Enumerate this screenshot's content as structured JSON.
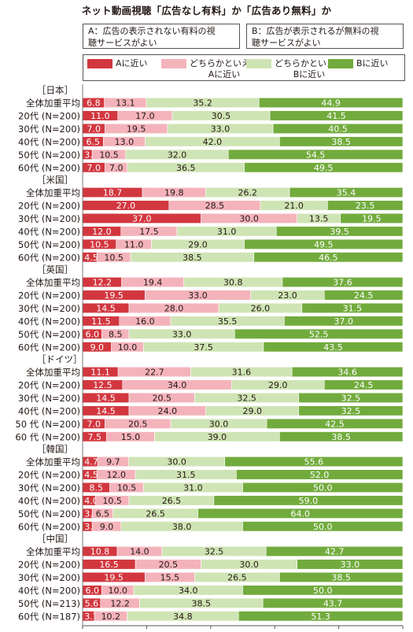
{
  "title": "ネット動画視聴「広告なし有料」か「広告あり無料」か",
  "option_a": "A：広告の表示されない有料の視\n聴サービスがよい",
  "option_b": "B：広告が表示されるが無料の視\n聴サービスがよい",
  "colors": {
    "a_near": "#d2373f",
    "lean_a": "#f4b3bb",
    "lean_b": "#cfe4b4",
    "b_near": "#72ab3d"
  },
  "chart_data": {
    "type": "bar",
    "stacked": true,
    "orientation": "horizontal",
    "title": "ネット動画視聴「広告なし有料」か「広告あり無料」か",
    "xlabel": "",
    "x_unit": "(%)",
    "xlim": [
      0,
      100
    ],
    "x_ticks": [
      "0",
      "20",
      "40",
      "60",
      "80",
      "100"
    ],
    "grid": false,
    "legend_position": "top",
    "series": [
      {
        "name": "Aに近い"
      },
      {
        "name": "どちらかといえば\nAに近い"
      },
      {
        "name": "どちらかといえば\nBに近い"
      },
      {
        "name": "Bに近い"
      }
    ],
    "groups": [
      {
        "name": "［日本］",
        "rows": [
          {
            "label": "全体加重平均",
            "values": [
              6.8,
              13.1,
              35.2,
              44.9
            ]
          },
          {
            "label": "20代 (N=200)",
            "values": [
              11.0,
              17.0,
              30.5,
              41.5
            ]
          },
          {
            "label": "30代 (N=200)",
            "values": [
              7.0,
              19.5,
              33.0,
              40.5
            ]
          },
          {
            "label": "40代 (N=200)",
            "values": [
              6.5,
              13.0,
              42.0,
              38.5
            ]
          },
          {
            "label": "50代 (N=200)",
            "values": [
              3.0,
              10.5,
              32.0,
              54.5
            ]
          },
          {
            "label": "60代 (N=200)",
            "values": [
              7.0,
              7.0,
              36.5,
              49.5
            ]
          }
        ]
      },
      {
        "name": "［米国］",
        "rows": [
          {
            "label": "全体加重平均",
            "values": [
              18.7,
              19.8,
              26.2,
              35.4
            ]
          },
          {
            "label": "20代 (N=200)",
            "values": [
              27.0,
              28.5,
              21.0,
              23.5
            ]
          },
          {
            "label": "30代 (N=200)",
            "values": [
              37.0,
              30.0,
              13.5,
              19.5
            ]
          },
          {
            "label": "40代 (N=200)",
            "values": [
              12.0,
              17.5,
              31.0,
              39.5
            ]
          },
          {
            "label": "50代 (N=200)",
            "values": [
              10.5,
              11.0,
              29.0,
              49.5
            ]
          },
          {
            "label": "60代 (N=200)",
            "values": [
              4.5,
              10.5,
              38.5,
              46.5
            ]
          }
        ]
      },
      {
        "name": "［英国］",
        "rows": [
          {
            "label": "全体加重平均",
            "values": [
              12.2,
              19.4,
              30.8,
              37.6
            ]
          },
          {
            "label": "20代 (N=200)",
            "values": [
              19.5,
              33.0,
              23.0,
              24.5
            ]
          },
          {
            "label": "30代 (N=200)",
            "values": [
              14.5,
              28.0,
              26.0,
              31.5
            ]
          },
          {
            "label": "40代 (N=200)",
            "values": [
              11.5,
              16.0,
              35.5,
              37.0
            ]
          },
          {
            "label": "50代 (N=200)",
            "values": [
              6.0,
              8.5,
              33.0,
              52.5
            ]
          },
          {
            "label": "60代 (N=200)",
            "values": [
              9.0,
              10.0,
              37.5,
              43.5
            ]
          }
        ]
      },
      {
        "name": "［ドイツ］",
        "rows": [
          {
            "label": "全体加重平均",
            "values": [
              11.1,
              22.7,
              31.6,
              34.6
            ]
          },
          {
            "label": "20代 (N=200)",
            "values": [
              12.5,
              34.0,
              29.0,
              24.5
            ]
          },
          {
            "label": "30代 (N=200)",
            "values": [
              14.5,
              20.5,
              32.5,
              32.5
            ]
          },
          {
            "label": "40代 (N=200)",
            "values": [
              14.5,
              24.0,
              29.0,
              32.5
            ]
          },
          {
            "label": "50 代 (N=200)",
            "values": [
              7.0,
              20.5,
              30.0,
              42.5
            ]
          },
          {
            "label": "60 代 (N=200)",
            "values": [
              7.5,
              15.0,
              39.0,
              38.5
            ]
          }
        ]
      },
      {
        "name": "［韓国］",
        "rows": [
          {
            "label": "全体加重平均",
            "values": [
              4.7,
              9.7,
              30.0,
              55.6
            ]
          },
          {
            "label": "20代 (N=200)",
            "values": [
              4.5,
              12.0,
              31.5,
              52.0
            ]
          },
          {
            "label": "30代 (N=200)",
            "values": [
              8.5,
              10.5,
              31.0,
              50.0
            ]
          },
          {
            "label": "40代 (N=200)",
            "values": [
              4.0,
              10.5,
              26.5,
              59.0
            ]
          },
          {
            "label": "50代 (N=200)",
            "values": [
              3.0,
              6.5,
              26.5,
              64.0
            ]
          },
          {
            "label": "60代 (N=200)",
            "values": [
              3.0,
              9.0,
              38.0,
              50.0
            ]
          }
        ]
      },
      {
        "name": "［中国］",
        "rows": [
          {
            "label": "全体加重平均",
            "values": [
              10.8,
              14.0,
              32.5,
              42.7
            ]
          },
          {
            "label": "20代 (N=200)",
            "values": [
              16.5,
              20.5,
              30.0,
              33.0
            ]
          },
          {
            "label": "30代 (N=200)",
            "values": [
              19.5,
              15.5,
              26.5,
              38.5
            ]
          },
          {
            "label": "40代 (N=200)",
            "values": [
              6.0,
              10.0,
              34.0,
              50.0
            ]
          },
          {
            "label": "50代 (N=213)",
            "values": [
              5.6,
              12.2,
              38.5,
              43.7
            ]
          },
          {
            "label": "60代 (N=187)",
            "values": [
              3.7,
              10.2,
              34.8,
              51.3
            ]
          }
        ]
      }
    ]
  }
}
